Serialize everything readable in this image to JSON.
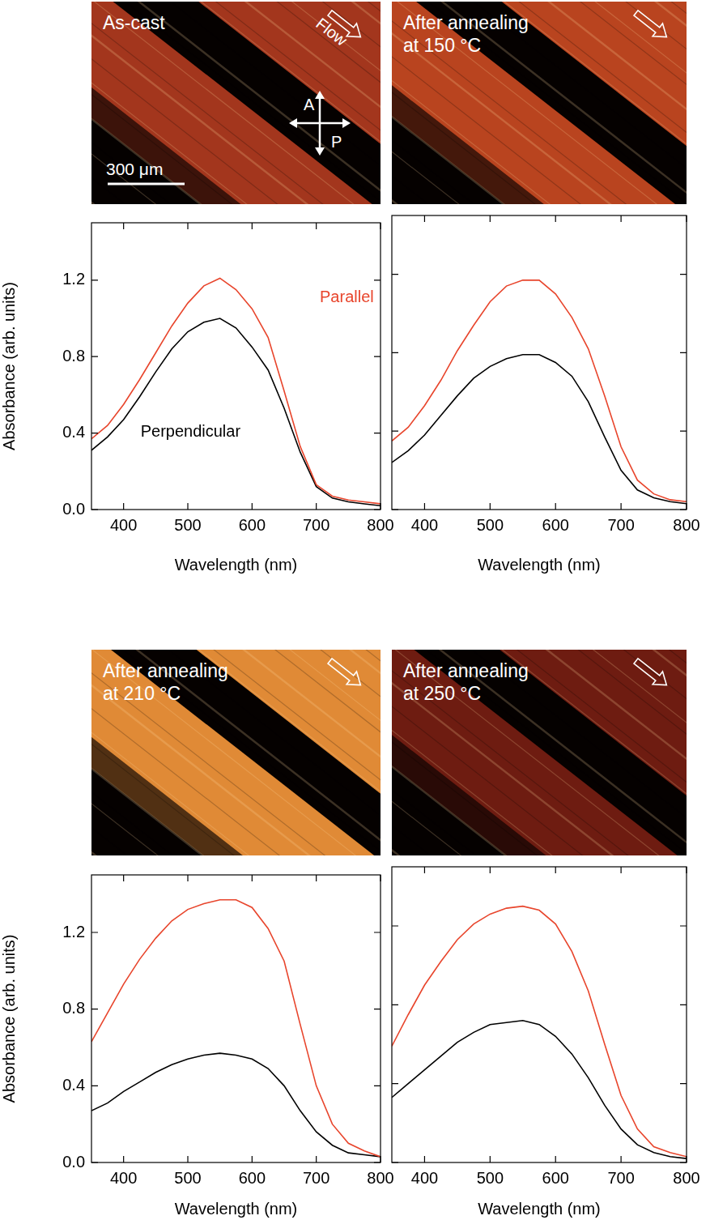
{
  "micrographs": [
    {
      "label_lines": [
        "As-cast"
      ],
      "flow_label": "Flow",
      "analyzer": "A",
      "polarizer": "P",
      "scale_bar": "300 μm",
      "color": "#a3361d"
    },
    {
      "label_lines": [
        "After annealing",
        "at 150 °C"
      ],
      "color": "#b9441f"
    },
    {
      "label_lines": [
        "After annealing",
        "at 210 °C"
      ],
      "color": "#e08a36"
    },
    {
      "label_lines": [
        "After annealing",
        "at 250 °C"
      ],
      "color": "#6e1c11"
    }
  ],
  "chart_data": [
    {
      "type": "line",
      "x_label": "Wavelength (nm)",
      "y_label": "Absorbance (arb. units)",
      "x": [
        350,
        375,
        400,
        425,
        450,
        475,
        500,
        525,
        550,
        575,
        600,
        625,
        650,
        675,
        700,
        725,
        750,
        775,
        800
      ],
      "xlim": [
        350,
        800
      ],
      "xticks": [
        400,
        500,
        600,
        700,
        800
      ],
      "ylim": [
        0,
        1.5
      ],
      "yticks": [
        {
          "value": 0,
          "label": "0.0"
        },
        0.4,
        0.8,
        1.2
      ],
      "grid": false,
      "series": [
        {
          "name": "Parallel",
          "color": "#e8452c",
          "values": [
            0.37,
            0.44,
            0.55,
            0.68,
            0.82,
            0.96,
            1.08,
            1.17,
            1.21,
            1.15,
            1.05,
            0.9,
            0.62,
            0.33,
            0.13,
            0.07,
            0.05,
            0.04,
            0.03
          ]
        },
        {
          "name": "Perpendicular",
          "color": "#000000",
          "values": [
            0.31,
            0.38,
            0.47,
            0.59,
            0.72,
            0.84,
            0.93,
            0.98,
            1.0,
            0.95,
            0.85,
            0.73,
            0.53,
            0.3,
            0.12,
            0.06,
            0.04,
            0.03,
            0.02
          ]
        }
      ]
    },
    {
      "type": "line",
      "x_label": "Wavelength (nm)",
      "tick_labels": "x",
      "x": [
        350,
        375,
        400,
        425,
        450,
        475,
        500,
        525,
        550,
        575,
        600,
        625,
        650,
        675,
        700,
        725,
        750,
        775,
        800
      ],
      "xlim": [
        350,
        800
      ],
      "xticks": [
        400,
        500,
        600,
        700,
        800
      ],
      "ylim": [
        0,
        1.5
      ],
      "yticks": [
        {
          "value": 0,
          "label": "0.0"
        },
        0.4,
        0.8,
        1.2
      ],
      "grid": false,
      "series": [
        {
          "color": "#e8452c",
          "values": [
            0.35,
            0.42,
            0.53,
            0.66,
            0.81,
            0.94,
            1.06,
            1.14,
            1.17,
            1.17,
            1.1,
            0.98,
            0.82,
            0.58,
            0.32,
            0.15,
            0.08,
            0.05,
            0.04
          ]
        },
        {
          "color": "#000000",
          "values": [
            0.24,
            0.3,
            0.38,
            0.48,
            0.58,
            0.67,
            0.73,
            0.77,
            0.79,
            0.79,
            0.75,
            0.68,
            0.55,
            0.37,
            0.2,
            0.1,
            0.06,
            0.04,
            0.03
          ]
        }
      ]
    },
    {
      "type": "line",
      "x_label": "Wavelength (nm)",
      "y_label": "Absorbance (arb. units)",
      "x": [
        350,
        375,
        400,
        425,
        450,
        475,
        500,
        525,
        550,
        575,
        600,
        625,
        650,
        675,
        700,
        725,
        750,
        775,
        800
      ],
      "xlim": [
        350,
        800
      ],
      "xticks": [
        400,
        500,
        600,
        700,
        800
      ],
      "ylim": [
        0,
        1.5
      ],
      "yticks": [
        {
          "value": 0,
          "label": "0.0"
        },
        0.4,
        0.8,
        1.2
      ],
      "grid": false,
      "series": [
        {
          "color": "#e8452c",
          "values": [
            0.63,
            0.78,
            0.93,
            1.06,
            1.17,
            1.26,
            1.32,
            1.35,
            1.37,
            1.37,
            1.33,
            1.22,
            1.05,
            0.72,
            0.4,
            0.2,
            0.1,
            0.06,
            0.03
          ]
        },
        {
          "color": "#000000",
          "values": [
            0.27,
            0.31,
            0.37,
            0.42,
            0.47,
            0.51,
            0.54,
            0.56,
            0.57,
            0.56,
            0.54,
            0.49,
            0.4,
            0.27,
            0.16,
            0.09,
            0.05,
            0.04,
            0.03
          ]
        }
      ]
    },
    {
      "type": "line",
      "x_label": "Wavelength (nm)",
      "tick_labels": "x",
      "x": [
        350,
        375,
        400,
        425,
        450,
        475,
        500,
        525,
        550,
        575,
        600,
        625,
        650,
        675,
        700,
        725,
        750,
        775,
        800
      ],
      "xlim": [
        350,
        800
      ],
      "xticks": [
        400,
        500,
        600,
        700,
        800
      ],
      "ylim": [
        0,
        1.5
      ],
      "yticks": [
        {
          "value": 0,
          "label": "0.0"
        },
        0.4,
        0.8,
        1.2
      ],
      "grid": false,
      "series": [
        {
          "color": "#e8452c",
          "values": [
            0.59,
            0.75,
            0.9,
            1.02,
            1.13,
            1.21,
            1.26,
            1.29,
            1.3,
            1.28,
            1.21,
            1.07,
            0.87,
            0.6,
            0.34,
            0.17,
            0.08,
            0.05,
            0.03
          ]
        },
        {
          "color": "#000000",
          "values": [
            0.33,
            0.4,
            0.47,
            0.54,
            0.61,
            0.66,
            0.7,
            0.71,
            0.72,
            0.7,
            0.64,
            0.55,
            0.43,
            0.29,
            0.17,
            0.09,
            0.05,
            0.03,
            0.02
          ]
        }
      ]
    }
  ]
}
